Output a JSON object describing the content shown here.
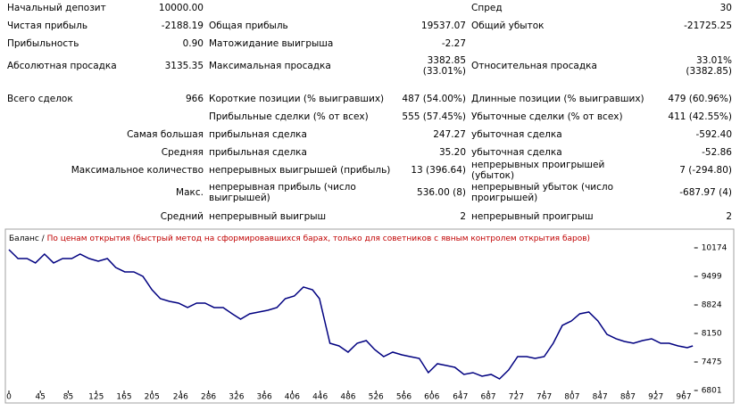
{
  "report": {
    "rows": [
      [
        "Начальный депозит",
        "10000.00",
        null,
        null,
        "Спред",
        "30"
      ],
      [
        "Чистая прибыль",
        "-2188.19",
        "Общая прибыль",
        "19537.07",
        "Общий убыток",
        "-21725.25"
      ],
      [
        "Прибыльность",
        "0.90",
        "Матожидание выигрыша",
        "-2.27",
        null,
        null
      ],
      [
        "Абсолютная просадка",
        "3135.35",
        "Максимальная просадка",
        "3382.85\n(33.01%)",
        "Относительная просадка",
        "33.01%\n(3382.85)"
      ],
      [
        "Всего сделок",
        "966",
        "Короткие позиции (% выигравших)",
        "487 (54.00%)",
        "Длинные позиции (% выигравших)",
        "479 (60.96%)"
      ],
      [
        null,
        null,
        "Прибыльные сделки (% от всех)",
        "555 (57.45%)",
        "Убыточные сделки (% от всех)",
        "411 (42.55%)"
      ],
      [
        null,
        "Самая большая",
        "прибыльная сделка",
        "247.27",
        "убыточная сделка",
        "-592.40"
      ],
      [
        null,
        "Средняя",
        "прибыльная сделка",
        "35.20",
        "убыточная сделка",
        "-52.86"
      ],
      [
        null,
        "Максимальное количество",
        "непрерывных выигрышей (прибыль)",
        "13 (396.64)",
        "непрерывных проигрышей (убыток)",
        "7 (-294.80)"
      ],
      [
        null,
        "Макс.",
        "непрерывная прибыль (число\nвыигрышей)",
        "536.00 (8)",
        "непрерывный убыток (число\nпроигрышей)",
        "-687.97 (4)"
      ],
      [
        null,
        "Средний",
        "непрерывный выигрыш",
        "2",
        "непрерывный проигрыш",
        "2"
      ]
    ]
  },
  "chart_data": {
    "type": "line",
    "separator": "/",
    "subtitle": "По ценам открытия (быстрый метод на сформировавшихся барах, только для советников с явным контролем открытия баров)",
    "x": [
      0,
      13,
      26,
      38,
      51,
      64,
      77,
      90,
      102,
      115,
      128,
      141,
      153,
      166,
      179,
      192,
      205,
      217,
      230,
      243,
      256,
      269,
      281,
      294,
      307,
      320,
      332,
      345,
      358,
      371,
      384,
      396,
      409,
      422,
      435,
      445,
      454,
      460,
      473,
      486,
      499,
      512,
      524,
      537,
      550,
      563,
      575,
      588,
      601,
      614,
      627,
      639,
      652,
      665,
      678,
      691,
      703,
      716,
      729,
      742,
      754,
      767,
      780,
      793,
      806,
      818,
      831,
      844,
      857,
      870,
      882,
      895,
      908,
      921,
      934,
      946,
      959,
      972,
      980
    ],
    "series": [
      {
        "name": "Баланс",
        "color": "#000080",
        "values": [
          10132,
          9921,
          9921,
          9816,
          10026,
          9816,
          9921,
          9921,
          10026,
          9921,
          9858,
          9921,
          9710,
          9605,
          9605,
          9499,
          9183,
          8972,
          8909,
          8867,
          8762,
          8867,
          8867,
          8762,
          8762,
          8614,
          8488,
          8614,
          8656,
          8698,
          8762,
          8972,
          9036,
          9247,
          9183,
          8972,
          8340,
          7918,
          7855,
          7708,
          7918,
          7982,
          7771,
          7602,
          7708,
          7644,
          7602,
          7560,
          7223,
          7434,
          7392,
          7349,
          7181,
          7223,
          7139,
          7181,
          7075,
          7286,
          7602,
          7602,
          7560,
          7602,
          7918,
          8340,
          8445,
          8614,
          8656,
          8445,
          8129,
          8024,
          7961,
          7918,
          7982,
          8024,
          7918,
          7918,
          7855,
          7813,
          7855
        ]
      }
    ],
    "xlim": [
      0,
      982
    ],
    "ylim": [
      6548,
      10511
    ],
    "xticks": [
      0,
      45,
      85,
      125,
      165,
      205,
      246,
      286,
      326,
      366,
      406,
      446,
      486,
      526,
      566,
      606,
      647,
      687,
      727,
      767,
      807,
      847,
      887,
      927,
      967
    ],
    "yticks": [
      10174,
      9499,
      8824,
      8150,
      7475,
      6801
    ]
  }
}
